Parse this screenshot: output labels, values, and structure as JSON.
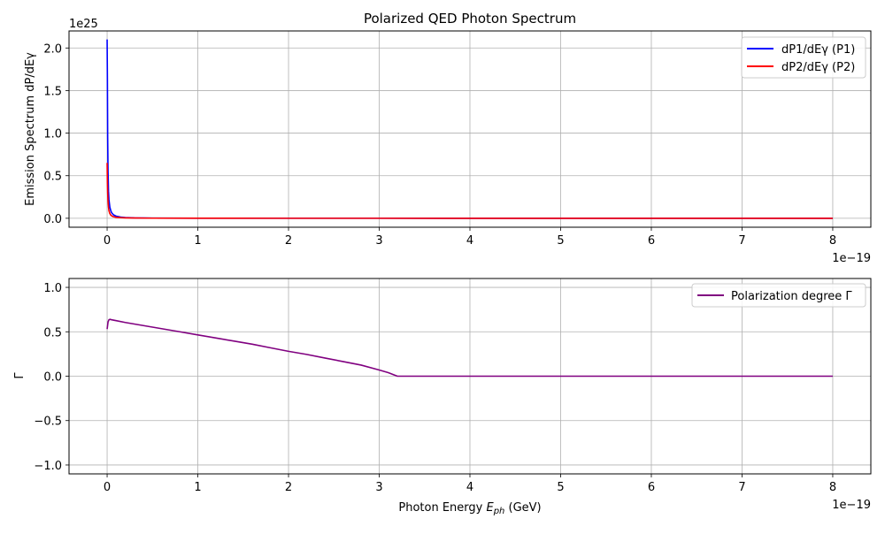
{
  "chart_data": [
    {
      "type": "line",
      "title": "Polarized QED Photon Spectrum",
      "xlabel": "",
      "ylabel": "Emission Spectrum dP/dEγ",
      "x_offset_label": "1e−19",
      "y_offset_label": "1e25",
      "xlim": [
        -0.42,
        8.42
      ],
      "ylim": [
        -0.105,
        2.2
      ],
      "x_ticks": [
        0,
        1,
        2,
        3,
        4,
        5,
        6,
        7,
        8
      ],
      "x_tick_labels": [
        "0",
        "1",
        "2",
        "3",
        "4",
        "5",
        "6",
        "7",
        "8"
      ],
      "y_ticks": [
        0.0,
        0.5,
        1.0,
        1.5,
        2.0
      ],
      "y_tick_labels": [
        "0.0",
        "0.5",
        "1.0",
        "1.5",
        "2.0"
      ],
      "grid": true,
      "legend_position": "top-right",
      "series": [
        {
          "name": "dP1/dEγ (P1)",
          "color": "#0000ff",
          "x": [
            0.0,
            0.003,
            0.006,
            0.01,
            0.015,
            0.02,
            0.03,
            0.04,
            0.05,
            0.07,
            0.1,
            0.15,
            0.2,
            0.3,
            0.5,
            1.0,
            2.0,
            3.0,
            4.0,
            5.0,
            6.0,
            7.0,
            8.0
          ],
          "y": [
            2.1,
            1.65,
            0.95,
            0.55,
            0.32,
            0.22,
            0.13,
            0.09,
            0.065,
            0.04,
            0.025,
            0.014,
            0.009,
            0.005,
            0.002,
            0.0008,
            0.0002,
            0.0001,
            0.0,
            0.0,
            0.0,
            0.0,
            0.0
          ]
        },
        {
          "name": "dP2/dEγ (P2)",
          "color": "#ff0000",
          "x": [
            0.0,
            0.003,
            0.006,
            0.01,
            0.015,
            0.02,
            0.03,
            0.04,
            0.05,
            0.07,
            0.1,
            0.15,
            0.2,
            0.3,
            0.5,
            1.0,
            2.0,
            3.0,
            4.0,
            5.0,
            6.0,
            7.0,
            8.0
          ],
          "y": [
            0.65,
            0.42,
            0.3,
            0.2,
            0.13,
            0.09,
            0.055,
            0.038,
            0.028,
            0.018,
            0.011,
            0.007,
            0.005,
            0.003,
            0.0015,
            0.0006,
            0.0002,
            0.0001,
            0.0,
            0.0,
            0.0,
            0.0,
            0.0
          ]
        }
      ]
    },
    {
      "type": "line",
      "title": "",
      "xlabel": "Photon Energy E_ph (GeV)",
      "xlabel_main": "Photon Energy ",
      "xlabel_math": "E",
      "xlabel_sub": "ph",
      "xlabel_tail": " (GeV)",
      "ylabel": "Γ",
      "x_offset_label": "1e−19",
      "xlim": [
        -0.42,
        8.42
      ],
      "ylim": [
        -1.1,
        1.1
      ],
      "x_ticks": [
        0,
        1,
        2,
        3,
        4,
        5,
        6,
        7,
        8
      ],
      "x_tick_labels": [
        "0",
        "1",
        "2",
        "3",
        "4",
        "5",
        "6",
        "7",
        "8"
      ],
      "y_ticks": [
        -1.0,
        -0.5,
        0.0,
        0.5,
        1.0
      ],
      "y_tick_labels": [
        "−1.0",
        "−0.5",
        "0.0",
        "0.5",
        "1.0"
      ],
      "grid": true,
      "legend_position": "top-right",
      "series": [
        {
          "name": "Polarization degree Γ",
          "color": "#800080",
          "x": [
            0.0,
            0.01,
            0.02,
            0.03,
            0.05,
            0.1,
            0.2,
            0.4,
            0.6,
            0.8,
            1.0,
            1.2,
            1.4,
            1.6,
            1.8,
            2.0,
            2.2,
            2.4,
            2.6,
            2.8,
            3.0,
            3.1,
            3.2,
            3.3,
            4.0,
            5.0,
            6.0,
            7.0,
            8.0
          ],
          "y": [
            0.53,
            0.61,
            0.635,
            0.64,
            0.635,
            0.625,
            0.605,
            0.57,
            0.535,
            0.5,
            0.465,
            0.43,
            0.395,
            0.36,
            0.32,
            0.28,
            0.245,
            0.205,
            0.165,
            0.125,
            0.07,
            0.04,
            0.0,
            0.0,
            0.0,
            0.0,
            0.0,
            0.0,
            0.0
          ]
        }
      ]
    }
  ]
}
